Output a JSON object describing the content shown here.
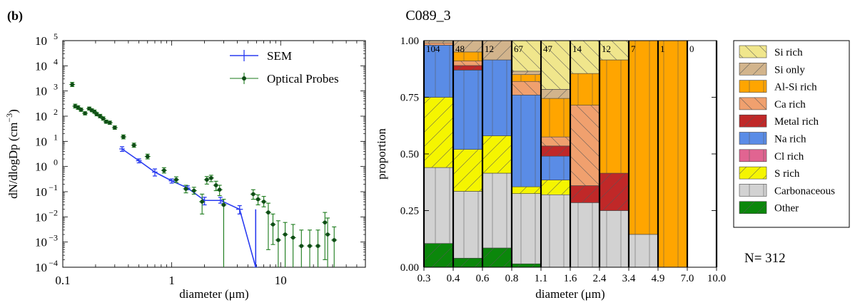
{
  "figure": {
    "panel_label": "(b)",
    "title": "C089_3",
    "n_label": "N= 312"
  },
  "colors": {
    "sem": "#2a3cf0",
    "optical": "#1a7a1a",
    "optical_marker": "#0f4d16"
  },
  "chart_data": [
    {
      "type": "scatter",
      "name": "size-distribution",
      "xscale": "log",
      "yscale": "log",
      "xlim": [
        0.1,
        60
      ],
      "ylim": [
        0.0001,
        100000
      ],
      "xlabel": "diameter (μm)",
      "ylabel": "dN/dlogDp (cm⁻³)",
      "xticks": [
        {
          "v": 0.1,
          "label": "0.1"
        },
        {
          "v": 1,
          "label": "1"
        },
        {
          "v": 10,
          "label": "10"
        }
      ],
      "yticks": [
        {
          "v": 0.0001,
          "b": "10",
          "e": "−4"
        },
        {
          "v": 0.001,
          "b": "10",
          "e": "−3"
        },
        {
          "v": 0.01,
          "b": "10",
          "e": "−2"
        },
        {
          "v": 0.1,
          "b": "10",
          "e": "−1"
        },
        {
          "v": 1,
          "b": "10",
          "e": "0"
        },
        {
          "v": 10,
          "b": "10",
          "e": "1"
        },
        {
          "v": 100,
          "b": "10",
          "e": "2"
        },
        {
          "v": 1000,
          "b": "10",
          "e": "3"
        },
        {
          "v": 10000,
          "b": "10",
          "e": "4"
        },
        {
          "v": 100000,
          "b": "10",
          "e": "5"
        }
      ],
      "legend_position": "top-right",
      "series": [
        {
          "name": "SEM",
          "style": "line-errorbar",
          "x": [
            0.35,
            0.5,
            0.7,
            1.0,
            1.4,
            2.0,
            2.8,
            4.2,
            5.9
          ],
          "y": [
            5.0,
            1.7,
            0.6,
            0.27,
            0.14,
            0.045,
            0.045,
            0.02,
            0.0001
          ],
          "yerr_low": [
            4.0,
            1.4,
            0.42,
            0.22,
            0.12,
            0.03,
            0.035,
            0.013,
            0.0001
          ],
          "yerr_high": [
            6.1,
            2.0,
            0.8,
            0.32,
            0.17,
            0.06,
            0.06,
            0.028,
            0.0001
          ],
          "xerr": [
            [
              0.33,
              0.37
            ],
            [
              0.47,
              0.53
            ],
            [
              0.66,
              0.74
            ],
            [
              0.94,
              1.06
            ],
            [
              1.32,
              1.48
            ],
            [
              1.85,
              2.15
            ],
            [
              2.5,
              3.0
            ],
            [
              3.9,
              4.5
            ],
            [
              5.6,
              6.2
            ]
          ]
        },
        {
          "name": "Optical Probes",
          "style": "marker-errorbar",
          "x": [
            0.122,
            0.13,
            0.138,
            0.147,
            0.16,
            0.175,
            0.185,
            0.195,
            0.205,
            0.22,
            0.235,
            0.25,
            0.27,
            0.3,
            0.36,
            0.45,
            0.6,
            0.85,
            1.1,
            1.35,
            1.6,
            1.9,
            2.1,
            2.3,
            2.55,
            2.75,
            3.0,
            5.6,
            6.2,
            7.0,
            7.7,
            8.5,
            9.5,
            11.0,
            13.0,
            15.5,
            18.5,
            22.0,
            25.5,
            27.0,
            31.0
          ],
          "y": [
            1800,
            250,
            220,
            180,
            130,
            200,
            170,
            150,
            120,
            100,
            80,
            60,
            55,
            35,
            15,
            7,
            2.5,
            0.7,
            0.3,
            0.13,
            0.11,
            0.04,
            0.3,
            0.35,
            0.18,
            0.12,
            0.03,
            0.08,
            0.05,
            0.04,
            0.015,
            0.005,
            0.0012,
            0.002,
            0.0015,
            0.0007,
            0.0007,
            0.0007,
            0.006,
            0.002,
            0.0012
          ],
          "ylo": [
            1500,
            210,
            185,
            155,
            112,
            175,
            150,
            130,
            103,
            86,
            69,
            52,
            47,
            30,
            12.5,
            5.8,
            2.0,
            0.55,
            0.23,
            0.09,
            0.08,
            0.013,
            0.2,
            0.25,
            0.11,
            0.07,
            0.0001,
            0.05,
            0.03,
            0.025,
            0.0005,
            0.0008,
            0.0001,
            0.0001,
            0.0001,
            0.0001,
            0.0001,
            0.0001,
            0.0002,
            0.0001,
            0.0001
          ],
          "yhi": [
            2200,
            300,
            260,
            210,
            150,
            230,
            195,
            175,
            140,
            118,
            94,
            70,
            64,
            41,
            18,
            8.5,
            3.1,
            0.9,
            0.39,
            0.18,
            0.15,
            0.08,
            0.4,
            0.45,
            0.26,
            0.18,
            0.05,
            0.12,
            0.075,
            0.065,
            0.035,
            0.013,
            0.007,
            0.006,
            0.005,
            0.003,
            0.003,
            0.003,
            0.015,
            0.009,
            0.004
          ]
        }
      ]
    },
    {
      "type": "bar",
      "name": "composition-proportion",
      "xlabel": "diameter (μm)",
      "ylabel": "proportion",
      "ylim": [
        0,
        1
      ],
      "yticks": [
        "0.00",
        "0.25",
        "0.50",
        "0.75",
        "1.00"
      ],
      "bin_edges": [
        "0.3",
        "0.4",
        "0.6",
        "0.8",
        "1.1",
        "1.6",
        "2.4",
        "3.4",
        "4.9",
        "7.0",
        "10.0"
      ],
      "bin_counts": [
        "104",
        "48",
        "12",
        "67",
        "47",
        "14",
        "12",
        "7",
        "1",
        "0"
      ],
      "legend_position": "right",
      "categories": [
        {
          "name": "Other",
          "color": "#0b870b",
          "hatch": "slash"
        },
        {
          "name": "Carbonaceous",
          "color": "#d2d2d2",
          "hatch": "vertical"
        },
        {
          "name": "S rich",
          "color": "#f5f500",
          "hatch": "slash"
        },
        {
          "name": "Cl rich",
          "color": "#e16491",
          "hatch": "vertical"
        },
        {
          "name": "Na rich",
          "color": "#5a8ce6",
          "hatch": "vertical"
        },
        {
          "name": "Metal rich",
          "color": "#c02828",
          "hatch": "slash"
        },
        {
          "name": "Ca rich",
          "color": "#f0a06e",
          "hatch": "backslash"
        },
        {
          "name": "Al-Si rich",
          "color": "#ffa500",
          "hatch": "vertical"
        },
        {
          "name": "Si only",
          "color": "#d2b48c",
          "hatch": "slash"
        },
        {
          "name": "Si rich",
          "color": "#f0e68c",
          "hatch": "backslash"
        }
      ],
      "legend_order": [
        "Si rich",
        "Si only",
        "Al-Si rich",
        "Ca rich",
        "Metal rich",
        "Na rich",
        "Cl rich",
        "S rich",
        "Carbonaceous",
        "Other"
      ],
      "bins": [
        {
          "Other": 0.105,
          "Carbonaceous": 0.335,
          "S rich": 0.31,
          "Cl rich": 0,
          "Na rich": 0.23,
          "Metal rich": 0,
          "Ca rich": 0.01,
          "Al-Si rich": 0,
          "Si only": 0.01,
          "Si rich": 0
        },
        {
          "Other": 0.04,
          "Carbonaceous": 0.295,
          "S rich": 0.185,
          "Cl rich": 0,
          "Na rich": 0.35,
          "Metal rich": 0.02,
          "Ca rich": 0.02,
          "Al-Si rich": 0.04,
          "Si only": 0.05,
          "Si rich": 0
        },
        {
          "Other": 0.085,
          "Carbonaceous": 0.33,
          "S rich": 0.165,
          "Cl rich": 0,
          "Na rich": 0.335,
          "Metal rich": 0,
          "Ca rich": 0,
          "Al-Si rich": 0,
          "Si only": 0.085,
          "Si rich": 0
        },
        {
          "Other": 0.015,
          "Carbonaceous": 0.31,
          "S rich": 0.03,
          "Cl rich": 0,
          "Na rich": 0.405,
          "Metal rich": 0,
          "Ca rich": 0.06,
          "Al-Si rich": 0.03,
          "Si only": 0.015,
          "Si rich": 0.135
        },
        {
          "Other": 0,
          "Carbonaceous": 0.32,
          "S rich": 0.065,
          "Cl rich": 0,
          "Na rich": 0.105,
          "Metal rich": 0.045,
          "Ca rich": 0.04,
          "Al-Si rich": 0.17,
          "Si only": 0.04,
          "Si rich": 0.215
        },
        {
          "Other": 0,
          "Carbonaceous": 0.285,
          "S rich": 0,
          "Cl rich": 0,
          "Na rich": 0,
          "Metal rich": 0.075,
          "Ca rich": 0.355,
          "Al-Si rich": 0.14,
          "Si only": 0,
          "Si rich": 0.145
        },
        {
          "Other": 0,
          "Carbonaceous": 0.25,
          "S rich": 0,
          "Cl rich": 0,
          "Na rich": 0,
          "Metal rich": 0.165,
          "Ca rich": 0,
          "Al-Si rich": 0.5,
          "Si only": 0,
          "Si rich": 0.085
        },
        {
          "Other": 0,
          "Carbonaceous": 0.145,
          "S rich": 0,
          "Cl rich": 0,
          "Na rich": 0,
          "Metal rich": 0,
          "Ca rich": 0,
          "Al-Si rich": 0.855,
          "Si only": 0,
          "Si rich": 0
        },
        {
          "Other": 0,
          "Carbonaceous": 0,
          "S rich": 0,
          "Cl rich": 0,
          "Na rich": 0,
          "Metal rich": 0,
          "Ca rich": 0,
          "Al-Si rich": 1.0,
          "Si only": 0,
          "Si rich": 0
        },
        {
          "Other": 0,
          "Carbonaceous": 0,
          "S rich": 0,
          "Cl rich": 0,
          "Na rich": 0,
          "Metal rich": 0,
          "Ca rich": 0,
          "Al-Si rich": 0,
          "Si only": 0,
          "Si rich": 0
        }
      ]
    }
  ]
}
